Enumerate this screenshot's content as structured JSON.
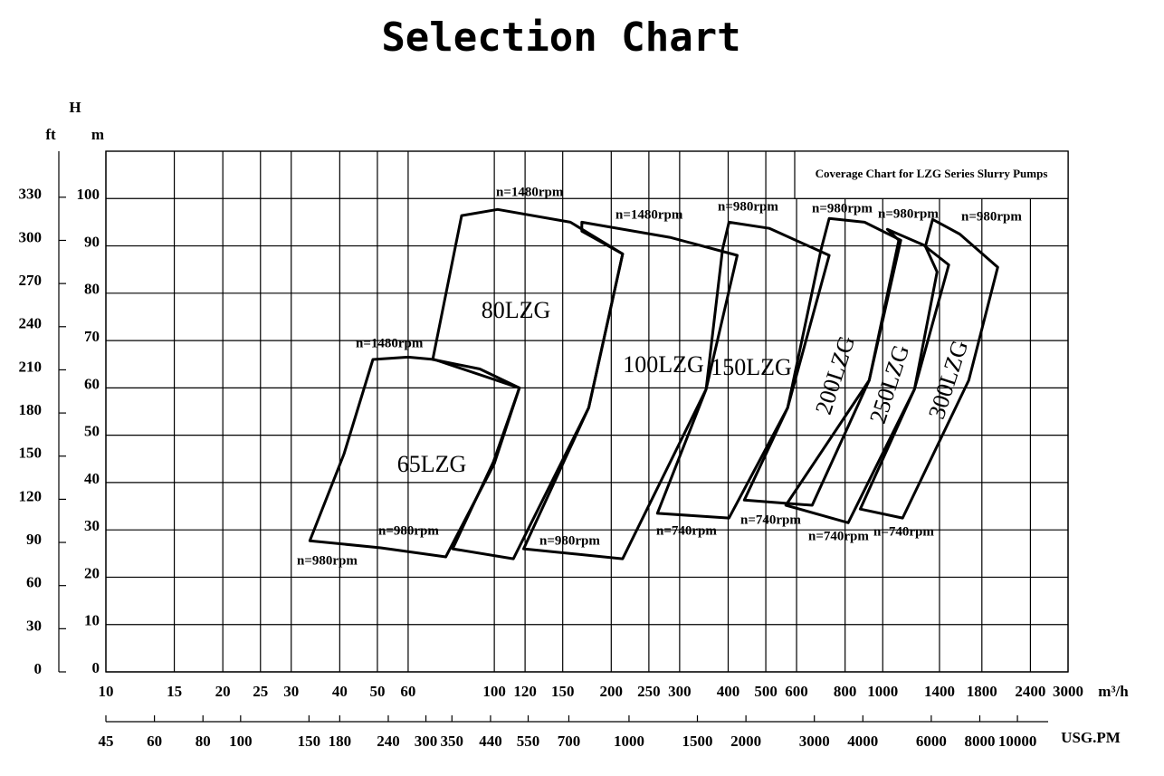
{
  "chart_data": {
    "type": "region",
    "title": "Selection Chart",
    "note": "Coverage Chart for LZG Series Slurry Pumps",
    "y_label": "H",
    "y_unit": "m",
    "y2_unit": "ft",
    "x_unit": "m³/h",
    "x2_unit": "USG.PM",
    "xscale": "log",
    "grid": true,
    "color": "#000000",
    "xlim": [
      10,
      3000
    ],
    "xticks": [
      10,
      15,
      20,
      25,
      30,
      40,
      50,
      60,
      100,
      120,
      150,
      200,
      250,
      300,
      400,
      500,
      600,
      800,
      1000,
      1400,
      1800,
      2400,
      3000
    ],
    "x2lim": [
      45,
      13500
    ],
    "x2ticks": [
      45,
      60,
      80,
      100,
      150,
      180,
      240,
      300,
      350,
      440,
      550,
      700,
      1000,
      1500,
      2000,
      3000,
      4000,
      6000,
      8000,
      10000
    ],
    "ylim": [
      0,
      110
    ],
    "yticks": [
      0,
      10,
      20,
      30,
      40,
      50,
      60,
      70,
      80,
      90,
      100
    ],
    "y2lim": [
      0,
      362
    ],
    "y2ticks": [
      0,
      30,
      60,
      90,
      120,
      150,
      180,
      210,
      240,
      270,
      300,
      330
    ],
    "series": [
      {
        "name": "65LZG",
        "x": [
          33.5,
          41,
          48.7,
          60,
          70,
          116,
          100,
          75,
          51
        ],
        "y": [
          27.7,
          46,
          66,
          66.5,
          66,
          60,
          44,
          24.3,
          26.2
        ]
      },
      {
        "name": "80LZG",
        "x": [
          69.4,
          82.4,
          102,
          157,
          214,
          175,
          112,
          78.1,
          99.5,
          116,
          91.8
        ],
        "y": [
          66,
          96.4,
          97.7,
          95,
          88.3,
          55.8,
          23.9,
          26,
          44.4,
          60,
          64
        ]
      },
      {
        "name": "100LZG",
        "x": [
          168,
          283,
          422,
          351,
          214,
          119,
          175,
          214,
          168
        ],
        "y": [
          95,
          91.8,
          88,
          59.7,
          23.9,
          26,
          55.8,
          88.3,
          93.1
        ]
      },
      {
        "name": "150LZG",
        "x": [
          402,
          511,
          728,
          569,
          402,
          263,
          351,
          387
        ],
        "y": [
          95,
          93.7,
          88,
          55.8,
          32.5,
          33.5,
          59.7,
          89.3
        ]
      },
      {
        "name": "200LZG",
        "x": [
          728,
          898,
          1113,
          923,
          658,
          440,
          569,
          694
        ],
        "y": [
          95.8,
          95,
          91.2,
          61.6,
          35.2,
          36.3,
          55.8,
          89.3
        ]
      },
      {
        "name": "250LZG",
        "x": [
          1028,
          1273,
          1479,
          1207,
          815,
          563,
          923,
          1100
        ],
        "y": [
          93.5,
          90.2,
          86,
          59.7,
          31.5,
          35.2,
          61.6,
          91.2
        ]
      },
      {
        "name": "300LZG",
        "x": [
          1344,
          1578,
          1977,
          1665,
          1125,
          875,
          1207,
          1380,
          1288
        ],
        "y": [
          95.6,
          92.5,
          85.5,
          61.6,
          32.5,
          34.4,
          59.7,
          84.5,
          89.9
        ]
      }
    ],
    "annotations": [
      "n=1480rpm",
      "n=1480rpm",
      "n=980rpm",
      "n=980rpm",
      "n=980rpm",
      "n=980rpm",
      "n=1480rpm",
      "n=980rpm",
      "n=980rpm",
      "n=980rpm",
      "n=740rpm",
      "n=740rpm",
      "n=740rpm",
      "n=740rpm"
    ]
  }
}
